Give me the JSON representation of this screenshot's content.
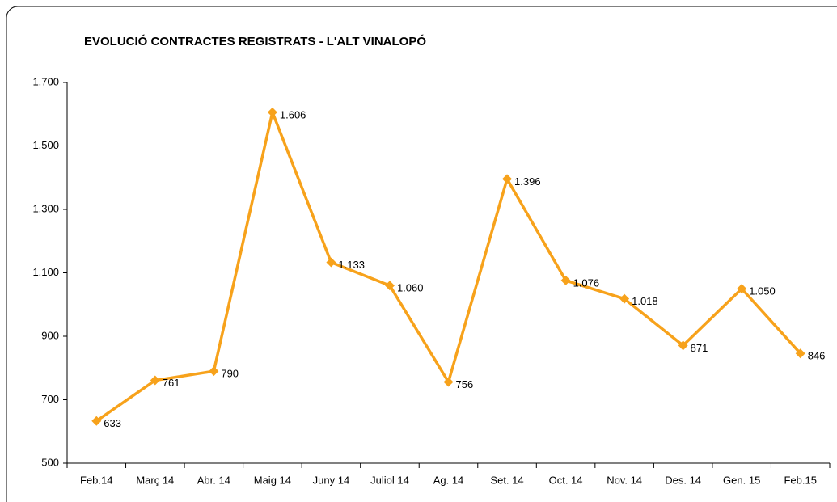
{
  "chart_data": {
    "type": "line",
    "title": "EVOLUCIÓ CONTRACTES REGISTRATS - L'ALT VINALOPÓ",
    "categories": [
      "Feb.14",
      "Març 14",
      "Abr. 14",
      "Maig 14",
      "Juny 14",
      "Juliol 14",
      "Ag. 14",
      "Set. 14",
      "Oct. 14",
      "Nov. 14",
      "Des. 14",
      "Gen. 15",
      "Feb.15"
    ],
    "series": [
      {
        "color": "#f7a21b",
        "values": [
          633,
          761,
          790,
          1606,
          1133,
          1060,
          756,
          1396,
          1076,
          1018,
          871,
          1050,
          846
        ],
        "value_labels": [
          "633",
          "761",
          "790",
          "1.606",
          "1.133",
          "1.060",
          "756",
          "1.396",
          "1.076",
          "1.018",
          "871",
          "1.050",
          "846"
        ]
      }
    ],
    "ylim": [
      500,
      1700
    ],
    "yticks": [
      500,
      700,
      900,
      {
        "value": 1100,
        "label": "1.100"
      },
      {
        "value": 1300,
        "label": "1.300"
      },
      {
        "value": 1500,
        "label": "1.500"
      },
      {
        "value": 1700,
        "label": "1.700"
      }
    ],
    "grid": false
  }
}
